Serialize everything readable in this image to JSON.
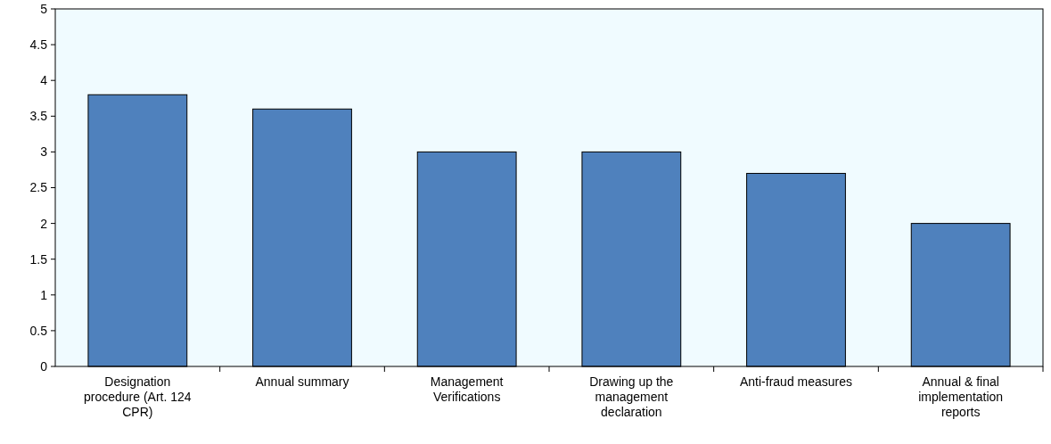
{
  "chart_data": {
    "type": "bar",
    "categories": [
      "Designation procedure (Art. 124 CPR)",
      "Annual summary",
      "Management Verifications",
      "Drawing up the management declaration",
      "Anti-fraud measures",
      "Annual & final implementation reports"
    ],
    "values": [
      3.8,
      3.6,
      3.0,
      3.0,
      2.7,
      2.0
    ],
    "color": "#4f81bd",
    "ylim": [
      0,
      5
    ],
    "yticks": [
      0,
      0.5,
      1,
      1.5,
      2,
      2.5,
      3,
      3.5,
      4,
      4.5,
      5
    ],
    "grid": false
  }
}
